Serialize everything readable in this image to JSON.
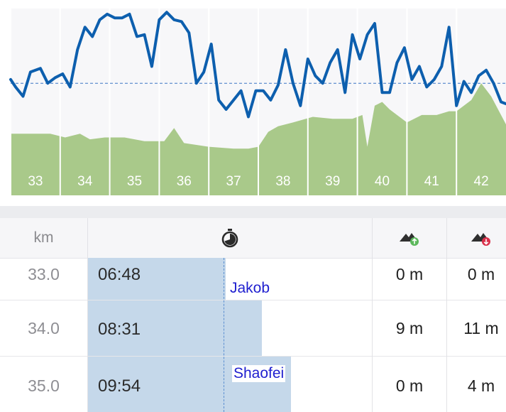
{
  "chart_data": {
    "type": "line",
    "x_ticks": [
      "33",
      "34",
      "35",
      "36",
      "37",
      "38",
      "39",
      "40",
      "41",
      "42"
    ],
    "xlim": [
      32.5,
      42.5
    ],
    "ylim": [
      0,
      10
    ],
    "pace": [
      [
        32.5,
        6.2
      ],
      [
        32.6,
        5.8
      ],
      [
        32.75,
        5.3
      ],
      [
        32.9,
        6.6
      ],
      [
        33.1,
        6.8
      ],
      [
        33.25,
        6.0
      ],
      [
        33.4,
        6.3
      ],
      [
        33.55,
        6.5
      ],
      [
        33.7,
        5.8
      ],
      [
        33.85,
        7.8
      ],
      [
        34.0,
        9.0
      ],
      [
        34.15,
        8.5
      ],
      [
        34.3,
        9.4
      ],
      [
        34.45,
        9.7
      ],
      [
        34.6,
        9.5
      ],
      [
        34.75,
        9.5
      ],
      [
        34.9,
        9.7
      ],
      [
        35.05,
        8.5
      ],
      [
        35.2,
        8.6
      ],
      [
        35.35,
        6.9
      ],
      [
        35.5,
        9.4
      ],
      [
        35.65,
        9.8
      ],
      [
        35.8,
        9.4
      ],
      [
        35.95,
        9.3
      ],
      [
        36.1,
        8.7
      ],
      [
        36.25,
        6.0
      ],
      [
        36.4,
        6.6
      ],
      [
        36.55,
        8.1
      ],
      [
        36.7,
        5.1
      ],
      [
        36.85,
        4.6
      ],
      [
        37.0,
        5.1
      ],
      [
        37.15,
        5.6
      ],
      [
        37.3,
        4.2
      ],
      [
        37.45,
        5.6
      ],
      [
        37.6,
        5.6
      ],
      [
        37.75,
        5.1
      ],
      [
        37.9,
        5.9
      ],
      [
        38.05,
        7.8
      ],
      [
        38.2,
        6.0
      ],
      [
        38.35,
        4.8
      ],
      [
        38.5,
        7.3
      ],
      [
        38.65,
        6.4
      ],
      [
        38.8,
        6.0
      ],
      [
        38.95,
        7.1
      ],
      [
        39.1,
        7.8
      ],
      [
        39.25,
        5.5
      ],
      [
        39.4,
        8.6
      ],
      [
        39.55,
        7.3
      ],
      [
        39.7,
        8.6
      ],
      [
        39.85,
        9.2
      ],
      [
        40.0,
        5.5
      ],
      [
        40.15,
        5.5
      ],
      [
        40.3,
        7.1
      ],
      [
        40.45,
        7.9
      ],
      [
        40.6,
        6.2
      ],
      [
        40.75,
        6.9
      ],
      [
        40.9,
        5.8
      ],
      [
        41.05,
        6.2
      ],
      [
        41.2,
        6.9
      ],
      [
        41.35,
        9.0
      ],
      [
        41.5,
        4.8
      ],
      [
        41.65,
        6.1
      ],
      [
        41.8,
        5.5
      ],
      [
        41.95,
        6.4
      ],
      [
        42.1,
        6.7
      ],
      [
        42.25,
        6.0
      ],
      [
        42.4,
        5.0
      ],
      [
        42.5,
        4.9
      ]
    ],
    "pace_average": 6.0,
    "elevation": [
      [
        32.5,
        3.3
      ],
      [
        33.0,
        3.3
      ],
      [
        33.3,
        3.3
      ],
      [
        33.6,
        3.1
      ],
      [
        33.9,
        3.3
      ],
      [
        34.1,
        3.0
      ],
      [
        34.4,
        3.1
      ],
      [
        34.8,
        3.1
      ],
      [
        35.2,
        2.9
      ],
      [
        35.6,
        2.9
      ],
      [
        35.8,
        3.6
      ],
      [
        36.0,
        2.8
      ],
      [
        36.5,
        2.6
      ],
      [
        37.0,
        2.5
      ],
      [
        37.3,
        2.5
      ],
      [
        37.5,
        2.6
      ],
      [
        37.7,
        3.4
      ],
      [
        37.9,
        3.7
      ],
      [
        38.2,
        3.9
      ],
      [
        38.6,
        4.2
      ],
      [
        39.0,
        4.1
      ],
      [
        39.4,
        4.1
      ],
      [
        39.6,
        4.3
      ],
      [
        39.7,
        2.6
      ],
      [
        39.85,
        4.8
      ],
      [
        40.0,
        5.0
      ],
      [
        40.15,
        4.6
      ],
      [
        40.3,
        4.3
      ],
      [
        40.5,
        3.9
      ],
      [
        40.8,
        4.3
      ],
      [
        41.1,
        4.3
      ],
      [
        41.35,
        4.5
      ],
      [
        41.5,
        4.5
      ],
      [
        41.8,
        5.1
      ],
      [
        42.0,
        6.0
      ],
      [
        42.2,
        5.3
      ],
      [
        42.5,
        3.8
      ]
    ]
  },
  "table": {
    "headers": {
      "km": "km",
      "time_icon": "stopwatch-icon",
      "ascent_icon": "mountain-ascent-icon",
      "descent_icon": "mountain-descent-icon"
    },
    "rows": [
      {
        "km": "33.0",
        "time": "06:48",
        "time_seconds": 408,
        "ascent": "0 m",
        "descent": "0 m"
      },
      {
        "km": "34.0",
        "time": "08:31",
        "time_seconds": 511,
        "ascent": "9 m",
        "descent": "11 m"
      },
      {
        "km": "35.0",
        "time": "09:54",
        "time_seconds": 594,
        "ascent": "0 m",
        "descent": "4 m"
      }
    ],
    "runners": [
      "Jakob",
      "Shaofei"
    ]
  },
  "colors": {
    "pace_line": "#0d5fae",
    "elevation_fill": "#a9c98a",
    "bar_fill": "#c5d8ea",
    "runner_label": "#1f1fcf",
    "ascent_badge": "#5cb85c",
    "descent_badge": "#d9304a"
  }
}
